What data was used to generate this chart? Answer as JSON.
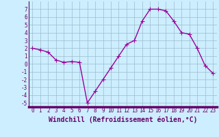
{
  "x": [
    0,
    1,
    2,
    3,
    4,
    5,
    6,
    7,
    8,
    9,
    10,
    11,
    12,
    13,
    14,
    15,
    16,
    17,
    18,
    19,
    20,
    21,
    22,
    23
  ],
  "y": [
    2.0,
    1.8,
    1.5,
    0.5,
    0.2,
    0.3,
    0.2,
    -5.0,
    -3.5,
    -2.0,
    -0.5,
    1.0,
    2.5,
    3.0,
    5.5,
    7.0,
    7.0,
    6.8,
    5.5,
    4.0,
    3.8,
    2.0,
    -0.2,
    -1.2
  ],
  "line_color": "#990099",
  "marker": "+",
  "markersize": 4,
  "linewidth": 1.0,
  "bg_color": "#cceeff",
  "grid_color": "#99bbcc",
  "xlabel": "Windchill (Refroidissement éolien,°C)",
  "xlabel_color": "#660066",
  "xlabel_fontsize": 7,
  "ylim": [
    -5.5,
    8.0
  ],
  "xlim": [
    -0.5,
    23.5
  ],
  "yticks": [
    -5,
    -4,
    -3,
    -2,
    -1,
    0,
    1,
    2,
    3,
    4,
    5,
    6,
    7
  ],
  "xticks": [
    0,
    1,
    2,
    3,
    4,
    5,
    6,
    7,
    8,
    9,
    10,
    11,
    12,
    13,
    14,
    15,
    16,
    17,
    18,
    19,
    20,
    21,
    22,
    23
  ],
  "tick_fontsize": 5.5,
  "tick_color": "#660066",
  "spine_color": "#660066",
  "separator_color": "#660066"
}
